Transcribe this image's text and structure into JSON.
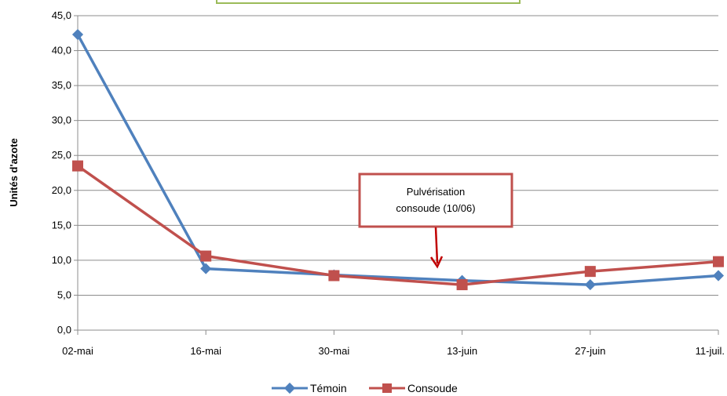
{
  "chart_data": {
    "type": "line",
    "categories": [
      "02-mai",
      "16-mai",
      "30-mai",
      "13-juin",
      "27-juin",
      "11-juil."
    ],
    "ylabel": "Unités d'azote",
    "ylim": [
      0,
      45
    ],
    "yticks": [
      "0,0",
      "5,0",
      "10,0",
      "15,0",
      "20,0",
      "25,0",
      "30,0",
      "35,0",
      "40,0",
      "45,0"
    ],
    "grid": true,
    "legend_position": "bottom",
    "series": [
      {
        "name": "Témoin",
        "color": "#4F81BD",
        "marker": "diamond",
        "values": [
          42.3,
          8.8,
          7.9,
          7.1,
          6.5,
          7.8
        ]
      },
      {
        "name": "Consoude",
        "color": "#C0504D",
        "marker": "square",
        "values": [
          23.5,
          10.6,
          7.8,
          6.5,
          8.4,
          9.8
        ]
      }
    ],
    "annotation": {
      "line1": "Pulvérisation",
      "line2": "consoude (10/06)",
      "border_color": "#C0504D"
    }
  }
}
